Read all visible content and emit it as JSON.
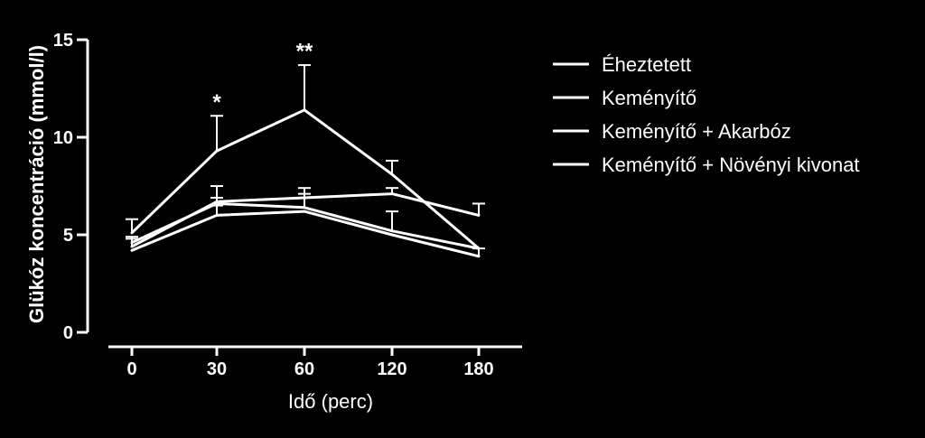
{
  "chart_data": {
    "type": "line",
    "xlabel": "Idő (perc)",
    "ylabel": "Glükóz koncentráció (mmol/l)",
    "ylim": [
      0,
      15
    ],
    "yticks": [
      "0",
      "5",
      "10",
      "15"
    ],
    "categories": [
      "0",
      "30",
      "60",
      "120",
      "180"
    ],
    "series": [
      {
        "name": "Éheztetett",
        "values": [
          5.1,
          9.3,
          11.4,
          8.1,
          4.3
        ],
        "err": [
          0.7,
          1.8,
          2.3,
          0.7,
          0.0
        ]
      },
      {
        "name": "Keményítő",
        "values": [
          4.4,
          6.7,
          6.9,
          7.1,
          6.0
        ],
        "err": [
          0.4,
          0.8,
          0.5,
          0.3,
          0.6
        ]
      },
      {
        "name": "Keményítő + Akarbóz",
        "values": [
          4.6,
          6.6,
          6.4,
          5.2,
          4.3
        ],
        "err": [
          0.3,
          0.3,
          0.7,
          1.0,
          0.0
        ]
      },
      {
        "name": "Keményítő + Növényi kivonat",
        "values": [
          4.2,
          6.0,
          6.2,
          5.0,
          3.9
        ],
        "err": [
          0.0,
          0.5,
          0.0,
          0.0,
          0.4
        ]
      }
    ],
    "annotations": [
      {
        "x": "30",
        "text": "*",
        "y": 12.0
      },
      {
        "x": "60",
        "text": "**",
        "y": 14.6
      }
    ],
    "grid": false,
    "legend": "right",
    "line_color": "#ffffff",
    "background": "#000000"
  }
}
